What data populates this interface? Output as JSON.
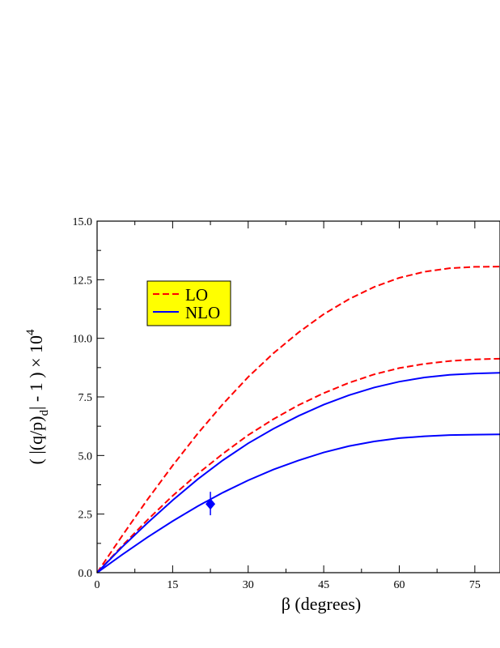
{
  "chart_data": {
    "type": "line",
    "xlabel": "β (degrees)",
    "ylabel_main": "( |(q/p)",
    "ylabel_sub": "d",
    "ylabel_rest": "| - 1 ) × 10",
    "ylabel_sup": "4",
    "xlim": [
      0,
      80
    ],
    "ylim": [
      0,
      15
    ],
    "xticks": [
      0,
      15,
      30,
      45,
      60,
      75
    ],
    "xtick_labels": [
      "0",
      "15",
      "30",
      "45",
      "60",
      "75"
    ],
    "yticks": [
      0,
      2.5,
      5,
      7.5,
      10,
      12.5,
      15
    ],
    "ytick_labels": [
      "0.0",
      "2.5",
      "5.0",
      "7.5",
      "10.0",
      "12.5",
      "15.0"
    ],
    "grid": false,
    "legend_position": "upper-left",
    "legend": [
      {
        "label": "LO",
        "color": "#ff0000",
        "dash": "dashed"
      },
      {
        "label": "NLO",
        "color": "#0000ff",
        "dash": "solid"
      }
    ],
    "series": [
      {
        "group": "LO",
        "color": "#ff0000",
        "dash": "dashed",
        "x": [
          0,
          5,
          10,
          15,
          20,
          25,
          30,
          35,
          40,
          45,
          50,
          55,
          60,
          65,
          70,
          75,
          80
        ],
        "y": [
          0,
          1.58,
          3.12,
          4.57,
          5.94,
          7.2,
          8.35,
          9.36,
          10.25,
          11.03,
          11.67,
          12.19,
          12.58,
          12.84,
          12.99,
          13.05,
          13.06
        ]
      },
      {
        "group": "LO",
        "color": "#ff0000",
        "dash": "dashed",
        "x": [
          0,
          5,
          10,
          15,
          20,
          25,
          30,
          35,
          40,
          45,
          50,
          55,
          60,
          65,
          70,
          75,
          80
        ],
        "y": [
          0,
          1.15,
          2.25,
          3.28,
          4.22,
          5.08,
          5.87,
          6.55,
          7.15,
          7.66,
          8.1,
          8.46,
          8.73,
          8.91,
          9.03,
          9.1,
          9.13
        ]
      },
      {
        "group": "NLO",
        "color": "#0000ff",
        "dash": "solid",
        "x": [
          0,
          5,
          10,
          15,
          20,
          25,
          30,
          35,
          40,
          45,
          50,
          55,
          60,
          65,
          70,
          75,
          80
        ],
        "y": [
          0,
          1.1,
          2.12,
          3.09,
          3.99,
          4.8,
          5.52,
          6.14,
          6.69,
          7.17,
          7.57,
          7.9,
          8.15,
          8.33,
          8.44,
          8.5,
          8.53
        ]
      },
      {
        "group": "NLO",
        "color": "#0000ff",
        "dash": "solid",
        "x": [
          0,
          5,
          10,
          15,
          20,
          25,
          30,
          35,
          40,
          45,
          50,
          55,
          60,
          65,
          70,
          75,
          80
        ],
        "y": [
          0,
          0.77,
          1.51,
          2.2,
          2.84,
          3.42,
          3.94,
          4.4,
          4.79,
          5.13,
          5.4,
          5.6,
          5.74,
          5.82,
          5.87,
          5.89,
          5.9
        ]
      }
    ],
    "data_point": {
      "x": 22.5,
      "y": 2.93,
      "y_err_low": 2.45,
      "y_err_high": 3.45,
      "color": "#0000ff",
      "marker": "diamond"
    }
  }
}
